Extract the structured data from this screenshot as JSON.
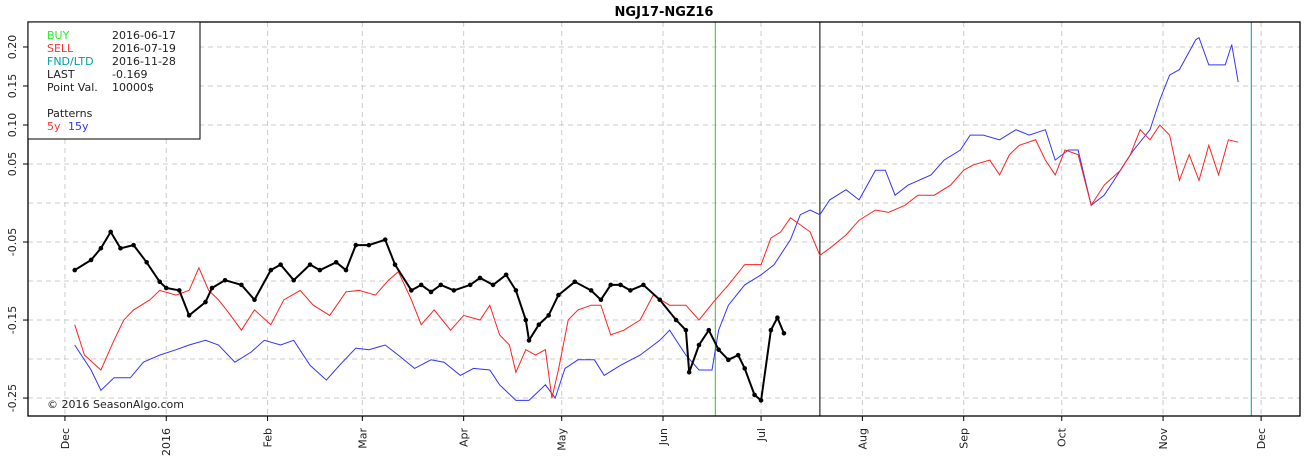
{
  "chart_data": {
    "type": "line",
    "title": "NGJ17-NGZ16",
    "x_unit": "days since 2015-12-01",
    "xlim": [
      -11.3,
      377.9
    ],
    "ylim": [
      -0.273,
      0.232
    ],
    "grid": true,
    "x_ticks": [
      {
        "label": "Dec",
        "day": 0
      },
      {
        "label": "2016",
        "day": 31
      },
      {
        "label": "Feb",
        "day": 62
      },
      {
        "label": "Mar",
        "day": 91
      },
      {
        "label": "Apr",
        "day": 122
      },
      {
        "label": "May",
        "day": 152
      },
      {
        "label": "Jun",
        "day": 183
      },
      {
        "label": "Jul",
        "day": 213
      },
      {
        "label": "Aug",
        "day": 244
      },
      {
        "label": "Sep",
        "day": 275
      },
      {
        "label": "Oct",
        "day": 305
      },
      {
        "label": "Nov",
        "day": 336
      },
      {
        "label": "Dec",
        "day": 366
      }
    ],
    "y_gridlines": [
      -0.25,
      -0.2,
      -0.15,
      -0.1,
      -0.05,
      0,
      0.05,
      0.1,
      0.15,
      0.2
    ],
    "y_ticks": [
      {
        "label": "0.20",
        "value": 0.2
      },
      {
        "label": "0.15",
        "value": 0.15
      },
      {
        "label": "0.10",
        "value": 0.1
      },
      {
        "label": "0.05",
        "value": 0.05
      },
      {
        "label": "-0.05",
        "value": -0.05
      },
      {
        "label": "-0.15",
        "value": -0.15
      },
      {
        "label": "-0.25",
        "value": -0.25
      }
    ],
    "markers": [
      {
        "name": "buy",
        "day": 199,
        "color": "#22cc22"
      },
      {
        "name": "sell",
        "day": 231,
        "color": "#000000"
      },
      {
        "name": "fnd",
        "day": 363,
        "color": "#00a0a0"
      }
    ],
    "series": [
      {
        "name": "15y",
        "color": "#3333ff",
        "points": [
          [
            3,
            -0.182
          ],
          [
            8,
            -0.214
          ],
          [
            11,
            -0.24
          ],
          [
            15,
            -0.224
          ],
          [
            20,
            -0.224
          ],
          [
            24,
            -0.204
          ],
          [
            29,
            -0.195
          ],
          [
            34,
            -0.188
          ],
          [
            38,
            -0.182
          ],
          [
            43,
            -0.176
          ],
          [
            47,
            -0.182
          ],
          [
            52,
            -0.204
          ],
          [
            57,
            -0.191
          ],
          [
            61,
            -0.176
          ],
          [
            66,
            -0.182
          ],
          [
            70,
            -0.176
          ],
          [
            75,
            -0.208
          ],
          [
            80,
            -0.227
          ],
          [
            84,
            -0.208
          ],
          [
            89,
            -0.186
          ],
          [
            93,
            -0.188
          ],
          [
            98,
            -0.182
          ],
          [
            102,
            -0.195
          ],
          [
            107,
            -0.212
          ],
          [
            112,
            -0.201
          ],
          [
            116,
            -0.204
          ],
          [
            121,
            -0.221
          ],
          [
            125,
            -0.212
          ],
          [
            130,
            -0.214
          ],
          [
            133,
            -0.233
          ],
          [
            138,
            -0.253
          ],
          [
            142,
            -0.253
          ],
          [
            147,
            -0.233
          ],
          [
            150,
            -0.25
          ],
          [
            153,
            -0.212
          ],
          [
            157,
            -0.201
          ],
          [
            162,
            -0.201
          ],
          [
            165,
            -0.221
          ],
          [
            170,
            -0.208
          ],
          [
            176,
            -0.195
          ],
          [
            182,
            -0.176
          ],
          [
            185,
            -0.163
          ],
          [
            190,
            -0.195
          ],
          [
            194,
            -0.214
          ],
          [
            198,
            -0.214
          ],
          [
            200,
            -0.163
          ],
          [
            203,
            -0.131
          ],
          [
            208,
            -0.105
          ],
          [
            213,
            -0.092
          ],
          [
            217,
            -0.079
          ],
          [
            222,
            -0.047
          ],
          [
            225,
            -0.015
          ],
          [
            228,
            -0.009
          ],
          [
            231,
            -0.015
          ],
          [
            234,
            0.004
          ],
          [
            239,
            0.017
          ],
          [
            243,
            0.004
          ],
          [
            248,
            0.042
          ],
          [
            251,
            0.042
          ],
          [
            254,
            0.01
          ],
          [
            258,
            0.023
          ],
          [
            265,
            0.036
          ],
          [
            269,
            0.055
          ],
          [
            274,
            0.068
          ],
          [
            277,
            0.087
          ],
          [
            281,
            0.087
          ],
          [
            286,
            0.081
          ],
          [
            291,
            0.094
          ],
          [
            295,
            0.087
          ],
          [
            300,
            0.094
          ],
          [
            303,
            0.055
          ],
          [
            307,
            0.068
          ],
          [
            310,
            0.068
          ],
          [
            314,
            -0.003
          ],
          [
            318,
            0.01
          ],
          [
            321,
            0.029
          ],
          [
            324,
            0.049
          ],
          [
            327,
            0.068
          ],
          [
            332,
            0.094
          ],
          [
            335,
            0.132
          ],
          [
            338,
            0.164
          ],
          [
            341,
            0.171
          ],
          [
            346,
            0.209
          ],
          [
            347,
            0.212
          ],
          [
            350,
            0.177
          ],
          [
            355,
            0.177
          ],
          [
            357,
            0.203
          ],
          [
            359,
            0.155
          ]
        ]
      },
      {
        "name": "5y",
        "color": "#ff2222",
        "points": [
          [
            3,
            -0.156
          ],
          [
            6,
            -0.195
          ],
          [
            11,
            -0.214
          ],
          [
            15,
            -0.176
          ],
          [
            18,
            -0.15
          ],
          [
            21,
            -0.137
          ],
          [
            26,
            -0.124
          ],
          [
            29,
            -0.112
          ],
          [
            34,
            -0.118
          ],
          [
            38,
            -0.112
          ],
          [
            41,
            -0.083
          ],
          [
            44,
            -0.112
          ],
          [
            47,
            -0.124
          ],
          [
            50,
            -0.14
          ],
          [
            54,
            -0.163
          ],
          [
            58,
            -0.137
          ],
          [
            63,
            -0.156
          ],
          [
            67,
            -0.124
          ],
          [
            72,
            -0.112
          ],
          [
            76,
            -0.131
          ],
          [
            81,
            -0.144
          ],
          [
            86,
            -0.114
          ],
          [
            90,
            -0.112
          ],
          [
            95,
            -0.118
          ],
          [
            99,
            -0.099
          ],
          [
            102,
            -0.088
          ],
          [
            106,
            -0.124
          ],
          [
            109,
            -0.156
          ],
          [
            113,
            -0.137
          ],
          [
            118,
            -0.163
          ],
          [
            122,
            -0.144
          ],
          [
            127,
            -0.15
          ],
          [
            130,
            -0.131
          ],
          [
            133,
            -0.169
          ],
          [
            136,
            -0.182
          ],
          [
            138,
            -0.217
          ],
          [
            141,
            -0.188
          ],
          [
            144,
            -0.195
          ],
          [
            147,
            -0.188
          ],
          [
            149,
            -0.25
          ],
          [
            151,
            -0.214
          ],
          [
            154,
            -0.15
          ],
          [
            157,
            -0.137
          ],
          [
            161,
            -0.131
          ],
          [
            164,
            -0.131
          ],
          [
            167,
            -0.169
          ],
          [
            171,
            -0.163
          ],
          [
            176,
            -0.15
          ],
          [
            180,
            -0.118
          ],
          [
            185,
            -0.131
          ],
          [
            190,
            -0.131
          ],
          [
            194,
            -0.15
          ],
          [
            199,
            -0.124
          ],
          [
            203,
            -0.105
          ],
          [
            208,
            -0.079
          ],
          [
            213,
            -0.079
          ],
          [
            216,
            -0.045
          ],
          [
            219,
            -0.037
          ],
          [
            222,
            -0.019
          ],
          [
            225,
            -0.028
          ],
          [
            228,
            -0.037
          ],
          [
            231,
            -0.067
          ],
          [
            234,
            -0.058
          ],
          [
            239,
            -0.041
          ],
          [
            243,
            -0.022
          ],
          [
            248,
            -0.009
          ],
          [
            252,
            -0.012
          ],
          [
            257,
            -0.003
          ],
          [
            261,
            0.01
          ],
          [
            266,
            0.01
          ],
          [
            271,
            0.023
          ],
          [
            275,
            0.042
          ],
          [
            278,
            0.049
          ],
          [
            283,
            0.055
          ],
          [
            286,
            0.036
          ],
          [
            289,
            0.062
          ],
          [
            292,
            0.074
          ],
          [
            297,
            0.081
          ],
          [
            300,
            0.055
          ],
          [
            303,
            0.036
          ],
          [
            306,
            0.068
          ],
          [
            310,
            0.062
          ],
          [
            314,
            -0.003
          ],
          [
            318,
            0.023
          ],
          [
            323,
            0.042
          ],
          [
            326,
            0.062
          ],
          [
            329,
            0.094
          ],
          [
            332,
            0.081
          ],
          [
            335,
            0.1
          ],
          [
            338,
            0.087
          ],
          [
            341,
            0.029
          ],
          [
            344,
            0.062
          ],
          [
            347,
            0.029
          ],
          [
            350,
            0.074
          ],
          [
            353,
            0.036
          ],
          [
            356,
            0.081
          ],
          [
            359,
            0.078
          ]
        ]
      },
      {
        "name": "current",
        "color": "#000000",
        "markers": true,
        "points": [
          [
            3,
            -0.086
          ],
          [
            8,
            -0.073
          ],
          [
            11,
            -0.058
          ],
          [
            14,
            -0.037
          ],
          [
            17,
            -0.058
          ],
          [
            21,
            -0.054
          ],
          [
            25,
            -0.076
          ],
          [
            29,
            -0.101
          ],
          [
            31,
            -0.109
          ],
          [
            35,
            -0.112
          ],
          [
            38,
            -0.144
          ],
          [
            43,
            -0.127
          ],
          [
            45,
            -0.109
          ],
          [
            49,
            -0.099
          ],
          [
            54,
            -0.105
          ],
          [
            58,
            -0.124
          ],
          [
            63,
            -0.086
          ],
          [
            66,
            -0.079
          ],
          [
            70,
            -0.099
          ],
          [
            75,
            -0.079
          ],
          [
            78,
            -0.086
          ],
          [
            83,
            -0.076
          ],
          [
            86,
            -0.086
          ],
          [
            89,
            -0.054
          ],
          [
            93,
            -0.054
          ],
          [
            98,
            -0.047
          ],
          [
            101,
            -0.079
          ],
          [
            106,
            -0.112
          ],
          [
            109,
            -0.105
          ],
          [
            112,
            -0.114
          ],
          [
            115,
            -0.105
          ],
          [
            119,
            -0.112
          ],
          [
            124,
            -0.105
          ],
          [
            127,
            -0.096
          ],
          [
            131,
            -0.105
          ],
          [
            135,
            -0.092
          ],
          [
            138,
            -0.112
          ],
          [
            141,
            -0.15
          ],
          [
            142,
            -0.176
          ],
          [
            145,
            -0.156
          ],
          [
            148,
            -0.144
          ],
          [
            151,
            -0.118
          ],
          [
            156,
            -0.101
          ],
          [
            161,
            -0.112
          ],
          [
            164,
            -0.124
          ],
          [
            167,
            -0.105
          ],
          [
            170,
            -0.105
          ],
          [
            173,
            -0.112
          ],
          [
            177,
            -0.105
          ],
          [
            182,
            -0.124
          ],
          [
            187,
            -0.15
          ],
          [
            190,
            -0.163
          ],
          [
            191,
            -0.217
          ],
          [
            194,
            -0.182
          ],
          [
            197,
            -0.163
          ],
          [
            200,
            -0.188
          ],
          [
            203,
            -0.201
          ],
          [
            206,
            -0.195
          ],
          [
            208,
            -0.212
          ],
          [
            211,
            -0.246
          ],
          [
            213,
            -0.253
          ],
          [
            216,
            -0.163
          ],
          [
            218,
            -0.147
          ],
          [
            220,
            -0.167
          ]
        ]
      }
    ],
    "legend": {
      "placement": "top-left",
      "rows": [
        {
          "label": "BUY",
          "value": "2016-06-17",
          "color": "#22ee22"
        },
        {
          "label": "SELL",
          "value": "2016-07-19",
          "color": "#ff3333"
        },
        {
          "label": "FND/LTD",
          "value": "2016-11-28",
          "color": "#00a0a0"
        },
        {
          "label": "LAST",
          "value": "-0.169",
          "color": "#222222"
        },
        {
          "label": "Point Val.",
          "value": "10000$",
          "color": "#222222"
        }
      ],
      "patterns_label": "Patterns",
      "pattern_5y": "5y",
      "pattern_15y": "15y"
    },
    "copyright": "© 2016 SeasonAlgo.com"
  }
}
